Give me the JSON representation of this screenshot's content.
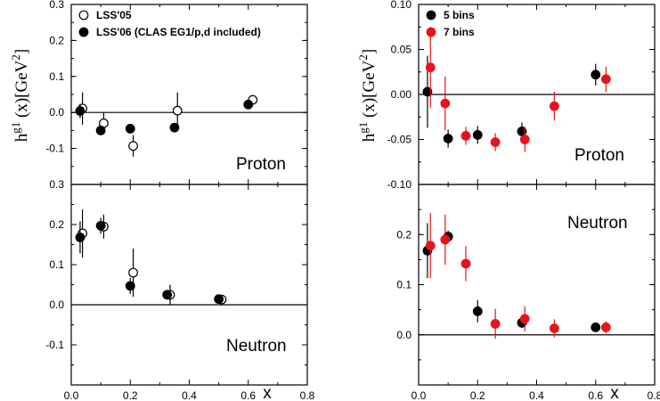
{
  "chart_data": [
    {
      "type": "scatter",
      "panel": "left-top",
      "annotation": "Proton",
      "ylabel": "h^g1 (x)[GeV^2]",
      "xlim": [
        0,
        0.8
      ],
      "ylim": [
        -0.2,
        0.3
      ],
      "y_ticks": [
        "0.3",
        "0.2",
        "0.1",
        "0.0",
        "-0.1",
        ""
      ],
      "legend": [
        "LSS'05",
        "LSS'06 (CLAS EG1/p,d included)"
      ],
      "legend_position": "top-left",
      "zero_line": true,
      "series": [
        {
          "name": "LSS'05",
          "marker": "open-circle",
          "color": "#000000",
          "x": [
            0.038,
            0.11,
            0.21,
            0.36,
            0.615
          ],
          "y": [
            0.011,
            -0.03,
            -0.093,
            0.005,
            0.035
          ],
          "yerr": [
            0.045,
            0.03,
            0.03,
            0.05,
            0.012
          ]
        },
        {
          "name": "LSS'06 (CLAS EG1/p,d included)",
          "marker": "filled-circle",
          "color": "#000000",
          "x": [
            0.03,
            0.1,
            0.2,
            0.35,
            0.6
          ],
          "y": [
            0.004,
            -0.05,
            -0.045,
            -0.042,
            0.022
          ],
          "yerr": [
            0.02,
            0.012,
            0.012,
            0.012,
            0.008
          ]
        }
      ]
    },
    {
      "type": "scatter",
      "panel": "left-bottom",
      "annotation": "Neutron",
      "xlabel": "x",
      "xlim": [
        0,
        0.8
      ],
      "ylim": [
        -0.2,
        0.3
      ],
      "x_ticks": [
        "0.0",
        "0.2",
        "0.4",
        "0.6",
        "0.8"
      ],
      "y_ticks": [
        "0.3",
        "0.2",
        "0.1",
        "0.0",
        "-0.1",
        ""
      ],
      "zero_line": true,
      "series": [
        {
          "name": "LSS'05",
          "marker": "open-circle",
          "color": "#000000",
          "x": [
            0.038,
            0.11,
            0.21,
            0.335,
            0.51
          ],
          "y": [
            0.178,
            0.195,
            0.08,
            0.025,
            0.013
          ],
          "yerr": [
            0.06,
            0.03,
            0.06,
            0.025,
            0.008
          ]
        },
        {
          "name": "LSS'06 (CLAS EG1/p,d included)",
          "marker": "filled-circle",
          "color": "#000000",
          "x": [
            0.03,
            0.1,
            0.2,
            0.325,
            0.5
          ],
          "y": [
            0.168,
            0.197,
            0.047,
            0.025,
            0.014
          ],
          "yerr": [
            0.04,
            0.02,
            0.02,
            0.012,
            0.005
          ]
        }
      ]
    },
    {
      "type": "scatter",
      "panel": "right-top",
      "annotation": "Proton",
      "ylabel": "h^g1 (x)[GeV^2]",
      "xlim": [
        0,
        0.8
      ],
      "ylim": [
        -0.1,
        0.1
      ],
      "y_ticks": [
        "0.10",
        "0.05",
        "0.00",
        "-0.05",
        "-0.10"
      ],
      "legend": [
        "5 bins",
        "7 bins"
      ],
      "legend_position": "top-left",
      "zero_line": true,
      "series": [
        {
          "name": "5 bins",
          "marker": "filled-circle",
          "color": "#000000",
          "x": [
            0.03,
            0.1,
            0.2,
            0.35,
            0.6
          ],
          "y": [
            0.003,
            -0.049,
            -0.045,
            -0.041,
            0.022
          ],
          "yerr": [
            0.04,
            0.01,
            0.01,
            0.01,
            0.012
          ]
        },
        {
          "name": "7 bins",
          "marker": "filled-circle",
          "color": "#e8141a",
          "x": [
            0.04,
            0.09,
            0.16,
            0.26,
            0.36,
            0.46,
            0.635
          ],
          "y": [
            0.03,
            -0.01,
            -0.046,
            -0.053,
            -0.05,
            -0.013,
            0.017
          ],
          "yerr": [
            0.045,
            0.03,
            0.01,
            0.01,
            0.014,
            0.016,
            0.014
          ]
        }
      ]
    },
    {
      "type": "scatter",
      "panel": "right-bottom",
      "annotation": "Neutron",
      "xlabel": "x",
      "xlim": [
        0,
        0.8
      ],
      "ylim": [
        -0.1,
        0.3
      ],
      "x_ticks": [
        "0.0",
        "0.2",
        "0.4",
        "0.6",
        "0.8"
      ],
      "y_ticks": [
        "",
        "0.2",
        "0.1",
        "0.0",
        ""
      ],
      "zero_line": true,
      "series": [
        {
          "name": "5 bins",
          "marker": "filled-circle",
          "color": "#000000",
          "x": [
            0.03,
            0.1,
            0.2,
            0.35,
            0.6
          ],
          "y": [
            0.168,
            0.196,
            0.047,
            0.024,
            0.015
          ],
          "yerr": [
            0.055,
            0.012,
            0.022,
            0.01,
            0.006
          ]
        },
        {
          "name": "7 bins",
          "marker": "filled-circle",
          "color": "#e8141a",
          "x": [
            0.04,
            0.09,
            0.16,
            0.26,
            0.36,
            0.46,
            0.635
          ],
          "y": [
            0.178,
            0.19,
            0.142,
            0.022,
            0.032,
            0.013,
            0.015
          ],
          "yerr": [
            0.065,
            0.05,
            0.035,
            0.03,
            0.025,
            0.018,
            0.012
          ]
        }
      ]
    }
  ]
}
